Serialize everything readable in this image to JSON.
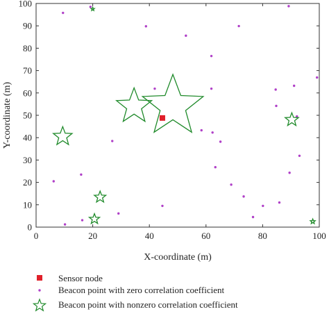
{
  "chart_data": {
    "type": "scatter",
    "xlabel": "X-coordinate (m)",
    "ylabel": "Y-coordinate (m)",
    "xlim": [
      0,
      100
    ],
    "ylim": [
      0,
      100
    ],
    "xticks": [
      "0",
      "20",
      "40",
      "60",
      "80",
      "100"
    ],
    "yticks": [
      "0",
      "10",
      "20",
      "30",
      "40",
      "50",
      "60",
      "70",
      "80",
      "90",
      "100"
    ],
    "grid": false,
    "legend_position": "bottom",
    "series": [
      {
        "name": "Sensor node",
        "marker": "square",
        "color": "#e0202a",
        "points": [
          [
            44.6,
            48.8
          ]
        ]
      },
      {
        "name": "Beacon point with zero correlation coefficient",
        "marker": "dot",
        "color": "#b040c8",
        "points": [
          [
            9.5,
            95.8
          ],
          [
            19.2,
            98.5
          ],
          [
            38.8,
            89.8
          ],
          [
            52.9,
            85.6
          ],
          [
            71.6,
            89.9
          ],
          [
            89.2,
            98.8
          ],
          [
            61.9,
            76.5
          ],
          [
            41.9,
            61.9
          ],
          [
            61.9,
            61.9
          ],
          [
            99.2,
            66.9
          ],
          [
            84.6,
            61.5
          ],
          [
            91.1,
            63.2
          ],
          [
            84.8,
            54.2
          ],
          [
            92.1,
            49.5
          ],
          [
            58.4,
            43.3
          ],
          [
            62.3,
            42.3
          ],
          [
            65.1,
            38.2
          ],
          [
            26.9,
            38.5
          ],
          [
            93.0,
            31.9
          ],
          [
            63.3,
            26.8
          ],
          [
            15.9,
            23.5
          ],
          [
            89.5,
            24.3
          ],
          [
            6.2,
            20.5
          ],
          [
            68.9,
            19.0
          ],
          [
            73.3,
            13.7
          ],
          [
            80.1,
            9.5
          ],
          [
            85.9,
            11.0
          ],
          [
            44.6,
            9.5
          ],
          [
            29.1,
            6.1
          ],
          [
            76.6,
            4.5
          ],
          [
            16.3,
            3.1
          ],
          [
            10.2,
            1.2
          ]
        ]
      },
      {
        "name": "Beacon point with nonzero correlation coefficient",
        "marker": "star",
        "color": "#1f8a2a",
        "points": [
          {
            "x": 48.3,
            "y": 54.0,
            "size": 1.0
          },
          {
            "x": 34.6,
            "y": 54.0,
            "size": 0.58
          },
          {
            "x": 9.4,
            "y": 40.5,
            "size": 0.31
          },
          {
            "x": 90.3,
            "y": 48.0,
            "size": 0.22
          },
          {
            "x": 22.6,
            "y": 13.4,
            "size": 0.19
          },
          {
            "x": 20.6,
            "y": 3.6,
            "size": 0.17
          },
          {
            "x": 97.7,
            "y": 2.5,
            "size": 0.08
          },
          {
            "x": 20.0,
            "y": 97.5,
            "size": 0.05
          }
        ]
      }
    ]
  }
}
